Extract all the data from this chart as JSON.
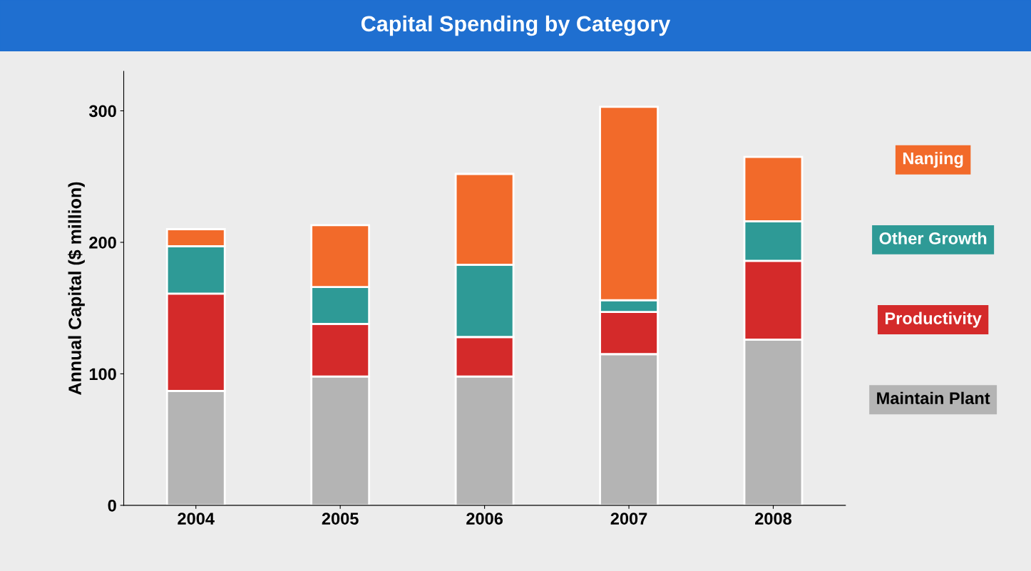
{
  "chart_data": {
    "type": "bar",
    "title": "Capital Spending by Category",
    "ylabel": "Annual Capital ($ million)",
    "categories": [
      "2004",
      "2005",
      "2006",
      "2007",
      "2008"
    ],
    "stacked": true,
    "legend": "right",
    "ylim": [
      0,
      330
    ],
    "yticks": [
      0,
      100,
      200,
      300
    ],
    "grid": false,
    "series": [
      {
        "name": "Maintain Plant",
        "color": "#b4b4b4",
        "values": [
          87,
          98,
          98,
          115,
          126
        ]
      },
      {
        "name": "Productivity",
        "color": "#d42a2a",
        "values": [
          74,
          40,
          30,
          32,
          60
        ]
      },
      {
        "name": "Other Growth",
        "color": "#2e9a96",
        "values": [
          36,
          28,
          55,
          9,
          30
        ]
      },
      {
        "name": "Nanjing",
        "color": "#f26a2a",
        "values": [
          13,
          47,
          69,
          147,
          49
        ]
      }
    ]
  }
}
